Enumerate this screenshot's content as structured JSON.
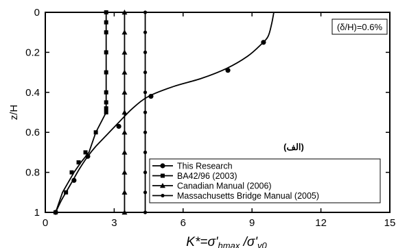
{
  "chart_data": {
    "type": "line",
    "title": "",
    "xlabel": "K*=σ'hmax /σ'v0",
    "xlabel_parts": {
      "main": "K*=σ'",
      "sub1": "hmax",
      "mid": " /σ'",
      "sub2": "v0"
    },
    "ylabel": "z/H",
    "xlim": [
      0,
      15
    ],
    "ylim": [
      1,
      0
    ],
    "y_inverted": true,
    "x_ticks": [
      "0",
      "3",
      "6",
      "9",
      "12",
      "15"
    ],
    "y_ticks": [
      "0",
      "0.2",
      "0.4",
      "0.6",
      "0.8",
      "1"
    ],
    "grid": false,
    "legend_position": "bottom-right",
    "annotations": [
      "(δ/H)=0.6%",
      "(الف)"
    ],
    "series": [
      {
        "name": "This Research",
        "marker": "circle",
        "x": [
          9.95,
          9.85,
          9.7,
          9.4,
          8.8,
          7.9,
          6.8,
          5.6,
          4.5,
          3.8,
          3.2,
          2.7,
          2.2,
          1.85,
          1.5,
          1.2,
          0.95,
          0.7,
          0.45
        ],
        "y": [
          0.0,
          0.06,
          0.12,
          0.16,
          0.22,
          0.28,
          0.33,
          0.37,
          0.42,
          0.48,
          0.55,
          0.61,
          0.67,
          0.72,
          0.78,
          0.84,
          0.89,
          0.94,
          1.0
        ],
        "marker_x": [
          9.5,
          7.95,
          4.6,
          3.2,
          1.85,
          1.25,
          0.45
        ],
        "marker_y": [
          0.15,
          0.29,
          0.42,
          0.57,
          0.72,
          0.84,
          1.0
        ]
      },
      {
        "name": "BA42/96 (2003)",
        "marker": "square",
        "x": [
          2.65,
          2.65,
          2.65,
          2.65,
          2.65,
          2.65,
          2.65,
          2.65,
          2.65,
          2.2,
          1.9,
          1.55,
          1.25,
          1.0,
          0.75,
          0.45
        ],
        "y": [
          0.0,
          0.05,
          0.1,
          0.2,
          0.3,
          0.4,
          0.45,
          0.48,
          0.5,
          0.6,
          0.7,
          0.75,
          0.8,
          0.85,
          0.9,
          1.0
        ],
        "marker_x": [
          2.65,
          2.65,
          2.65,
          2.65,
          2.65,
          2.65,
          2.65,
          2.65,
          2.65,
          2.2,
          1.75,
          1.45,
          1.15,
          0.9,
          0.45
        ],
        "marker_y": [
          0.0,
          0.05,
          0.1,
          0.2,
          0.3,
          0.4,
          0.45,
          0.48,
          0.5,
          0.6,
          0.7,
          0.75,
          0.8,
          0.9,
          1.0
        ]
      },
      {
        "name": "Canadian Manual (2006)",
        "marker": "triangle",
        "x": [
          3.45,
          3.45
        ],
        "y": [
          0.0,
          1.0
        ],
        "marker_x": [
          3.45,
          3.45,
          3.45,
          3.45,
          3.45,
          3.45,
          3.45,
          3.45,
          3.45,
          3.45,
          3.45
        ],
        "marker_y": [
          0.0,
          0.1,
          0.2,
          0.3,
          0.4,
          0.5,
          0.6,
          0.7,
          0.8,
          0.9,
          1.0
        ]
      },
      {
        "name": "Massachusetts Bridge Manual (2005)",
        "marker": "small-circle",
        "x": [
          4.35,
          4.35
        ],
        "y": [
          0.0,
          1.0
        ],
        "marker_x": [
          4.35,
          4.35,
          4.35,
          4.35,
          4.35,
          4.35,
          4.35,
          4.35,
          4.35,
          4.35,
          4.35
        ],
        "marker_y": [
          0.0,
          0.1,
          0.2,
          0.3,
          0.4,
          0.5,
          0.6,
          0.7,
          0.8,
          0.9,
          1.0
        ]
      }
    ]
  }
}
